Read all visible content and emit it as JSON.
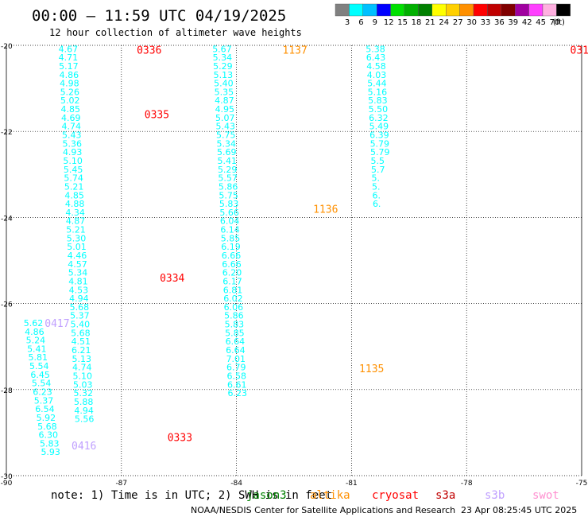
{
  "header": {
    "title": "00:00 — 11:59 UTC 04/19/2025",
    "subtitle": "12 hour collection of altimeter wave heights"
  },
  "colorbar": {
    "unit": "(ft)",
    "levels": [
      {
        "label": "3",
        "color": "#808080"
      },
      {
        "label": "6",
        "color": "#00ffff"
      },
      {
        "label": "9",
        "color": "#00c0ff"
      },
      {
        "label": "12",
        "color": "#0000ff"
      },
      {
        "label": "15",
        "color": "#00e000"
      },
      {
        "label": "18",
        "color": "#00b000"
      },
      {
        "label": "21",
        "color": "#008000"
      },
      {
        "label": "24",
        "color": "#ffff00"
      },
      {
        "label": "27",
        "color": "#ffd000"
      },
      {
        "label": "30",
        "color": "#ff9000"
      },
      {
        "label": "33",
        "color": "#ff0000"
      },
      {
        "label": "36",
        "color": "#c00000"
      },
      {
        "label": "39",
        "color": "#800000"
      },
      {
        "label": "42",
        "color": "#a000a0"
      },
      {
        "label": "45",
        "color": "#ff40ff"
      },
      {
        "label": "70",
        "color": "#ffb0e0"
      },
      {
        "label": "",
        "color": "#000000"
      }
    ]
  },
  "footer": {
    "note": "note:  1) Time is in UTC; 2) SWH is in feet",
    "credit": "NOAA/NESDIS Center for Satellite Applications and Research",
    "timestamp": "23 Apr 08:25:45 UTC 2025",
    "satellites": [
      {
        "name": "jason3",
        "color": "#008000"
      },
      {
        "name": "altika",
        "color": "#ff9000"
      },
      {
        "name": "cryosat",
        "color": "#ff0000"
      },
      {
        "name": "s3a",
        "color": "#c00000"
      },
      {
        "name": "s3b",
        "color": "#c0a0ff"
      },
      {
        "name": "swot",
        "color": "#ff90d0"
      }
    ]
  },
  "chart_data": {
    "type": "scatter",
    "xlabel": "",
    "ylabel": "",
    "xlim": [
      -90,
      -75
    ],
    "ylim": [
      -30,
      -20
    ],
    "xticks": [
      -90,
      -87,
      -84,
      -81,
      -78,
      -75
    ],
    "yticks": [
      -30,
      -28,
      -26,
      -24,
      -22,
      -20
    ],
    "grid": true,
    "series": [
      {
        "color": "#00ffff",
        "points": [
          [
            -88.64,
            -20.08,
            "4.67"
          ],
          [
            -88.64,
            -20.28,
            "4.71"
          ],
          [
            -88.63,
            -20.48,
            "5.17"
          ],
          [
            -88.62,
            -20.68,
            "4.86"
          ],
          [
            -88.61,
            -20.88,
            "4.98"
          ],
          [
            -88.6,
            -21.08,
            "5.26"
          ],
          [
            -88.59,
            -21.28,
            "5.02"
          ],
          [
            -88.58,
            -21.48,
            "4.85"
          ],
          [
            -88.57,
            -21.68,
            "4.69"
          ],
          [
            -88.56,
            -21.88,
            "4.74"
          ],
          [
            -88.55,
            -22.08,
            "5.43"
          ],
          [
            -88.54,
            -22.28,
            "5.36"
          ],
          [
            -88.53,
            -22.48,
            "4.93"
          ],
          [
            -88.52,
            -22.68,
            "5.10"
          ],
          [
            -88.51,
            -22.88,
            "5.45"
          ],
          [
            -88.5,
            -23.08,
            "5.74"
          ],
          [
            -88.49,
            -23.28,
            "5.21"
          ],
          [
            -88.48,
            -23.48,
            "4.85"
          ],
          [
            -88.47,
            -23.68,
            "4.88"
          ],
          [
            -88.46,
            -23.88,
            "4.34"
          ],
          [
            -88.45,
            -24.08,
            "4.87"
          ],
          [
            -88.44,
            -24.28,
            "5.21"
          ],
          [
            -88.43,
            -24.48,
            "5.30"
          ],
          [
            -88.42,
            -24.68,
            "5.01"
          ],
          [
            -88.41,
            -24.88,
            "4.46"
          ],
          [
            -88.4,
            -25.08,
            "4.57"
          ],
          [
            -88.39,
            -25.28,
            "5.34"
          ],
          [
            -88.38,
            -25.48,
            "4.81"
          ],
          [
            -88.37,
            -25.68,
            "4.53"
          ],
          [
            -88.36,
            -25.88,
            "4.94"
          ],
          [
            -88.35,
            -26.08,
            "5.68"
          ],
          [
            -88.34,
            -26.28,
            "5.37"
          ],
          [
            -88.33,
            -26.48,
            "5.40"
          ],
          [
            -88.32,
            -26.68,
            "5.68"
          ],
          [
            -88.31,
            -26.88,
            "4.51"
          ],
          [
            -88.3,
            -27.08,
            "6.21"
          ],
          [
            -88.29,
            -27.28,
            "5.13"
          ],
          [
            -88.28,
            -27.48,
            "4.74"
          ],
          [
            -88.27,
            -27.68,
            "5.10"
          ],
          [
            -88.26,
            -27.88,
            "5.03"
          ],
          [
            -88.25,
            -28.08,
            "5.32"
          ],
          [
            -88.24,
            -28.28,
            "5.88"
          ],
          [
            -88.23,
            -28.48,
            "4.94"
          ],
          [
            -88.22,
            -28.68,
            "5.56"
          ]
        ]
      },
      {
        "color": "#00ffff",
        "points": [
          [
            -84.63,
            -20.08,
            "5.67"
          ],
          [
            -84.62,
            -20.28,
            "5.34"
          ],
          [
            -84.61,
            -20.48,
            "5.29"
          ],
          [
            -84.6,
            -20.68,
            "5.13"
          ],
          [
            -84.59,
            -20.88,
            "5.40"
          ],
          [
            -84.58,
            -21.08,
            "5.35"
          ],
          [
            -84.57,
            -21.28,
            "4.87"
          ],
          [
            -84.56,
            -21.48,
            "4.95"
          ],
          [
            -84.55,
            -21.68,
            "5.07"
          ],
          [
            -84.54,
            -21.88,
            "5.43"
          ],
          [
            -84.53,
            -22.08,
            "5.75"
          ],
          [
            -84.52,
            -22.28,
            "5.34"
          ],
          [
            -84.51,
            -22.48,
            "5.69"
          ],
          [
            -84.5,
            -22.68,
            "5.41"
          ],
          [
            -84.49,
            -22.88,
            "5.29"
          ],
          [
            -84.48,
            -23.08,
            "5.57"
          ],
          [
            -84.47,
            -23.28,
            "5.86"
          ],
          [
            -84.46,
            -23.48,
            "5.75"
          ],
          [
            -84.45,
            -23.68,
            "5.83"
          ],
          [
            -84.44,
            -23.88,
            "5.66"
          ],
          [
            -84.43,
            -24.08,
            "6.04"
          ],
          [
            -84.42,
            -24.28,
            "6.14"
          ],
          [
            -84.41,
            -24.48,
            "5.85"
          ],
          [
            -84.4,
            -24.68,
            "6.19"
          ],
          [
            -84.39,
            -24.88,
            "6.66"
          ],
          [
            -84.38,
            -25.08,
            "6.66"
          ],
          [
            -84.37,
            -25.28,
            "6.20"
          ],
          [
            -84.36,
            -25.48,
            "6.17"
          ],
          [
            -84.35,
            -25.68,
            "6.81"
          ],
          [
            -84.34,
            -25.88,
            "6.02"
          ],
          [
            -84.33,
            -26.08,
            "6.06"
          ],
          [
            -84.32,
            -26.28,
            "5.86"
          ],
          [
            -84.31,
            -26.48,
            "5.83"
          ],
          [
            -84.3,
            -26.68,
            "5.85"
          ],
          [
            -84.29,
            -26.88,
            "6.64"
          ],
          [
            -84.28,
            -27.08,
            "6.64"
          ],
          [
            -84.27,
            -27.28,
            "7.01"
          ],
          [
            -84.26,
            -27.48,
            "6.79"
          ],
          [
            -84.25,
            -27.68,
            "6.58"
          ],
          [
            -84.24,
            -27.88,
            "6.61"
          ],
          [
            -84.23,
            -28.08,
            "6.23"
          ]
        ]
      },
      {
        "color": "#00ffff",
        "points": [
          [
            -80.63,
            -20.08,
            "5.38"
          ],
          [
            -80.62,
            -20.28,
            "6.43"
          ],
          [
            -80.61,
            -20.48,
            "4.58"
          ],
          [
            -80.6,
            -20.68,
            "4.03"
          ],
          [
            -80.59,
            -20.88,
            "5.44"
          ],
          [
            -80.58,
            -21.08,
            "5.16"
          ],
          [
            -80.57,
            -21.28,
            "5.83"
          ],
          [
            -80.56,
            -21.48,
            "5.50"
          ],
          [
            -80.55,
            -21.68,
            "6.32"
          ],
          [
            -80.54,
            -21.88,
            "5.49"
          ],
          [
            -80.53,
            -22.08,
            "6.39"
          ],
          [
            -80.52,
            -22.28,
            "5.79"
          ],
          [
            -80.51,
            -22.48,
            "5.79"
          ],
          [
            -80.5,
            -22.68,
            "5.5"
          ],
          [
            -80.49,
            -22.88,
            "5.7"
          ],
          [
            -80.48,
            -23.08,
            "5."
          ],
          [
            -80.47,
            -23.28,
            "5."
          ],
          [
            -80.46,
            -23.48,
            "6."
          ],
          [
            -80.45,
            -23.68,
            "6."
          ]
        ]
      },
      {
        "color": "#00ffff",
        "points": [
          [
            -89.55,
            -26.45,
            "5.62"
          ],
          [
            -89.52,
            -26.65,
            "4.86"
          ],
          [
            -89.49,
            -26.85,
            "5.24"
          ],
          [
            -89.46,
            -27.05,
            "5.41"
          ],
          [
            -89.43,
            -27.25,
            "5.81"
          ],
          [
            -89.4,
            -27.45,
            "5.54"
          ],
          [
            -89.37,
            -27.65,
            "6.45"
          ],
          [
            -89.34,
            -27.85,
            "5.54"
          ],
          [
            -89.31,
            -28.05,
            "6.23"
          ],
          [
            -89.28,
            -28.25,
            "5.37"
          ],
          [
            -89.25,
            -28.45,
            "6.54"
          ],
          [
            -89.22,
            -28.65,
            "5.92"
          ],
          [
            -89.19,
            -28.85,
            "5.68"
          ],
          [
            -89.16,
            -29.05,
            "6.30"
          ],
          [
            -89.13,
            -29.25,
            "5.83"
          ],
          [
            -89.1,
            -29.45,
            "5.93"
          ]
        ]
      }
    ],
    "annotations": [
      {
        "text": "0336",
        "x": -86.6,
        "y": -20.1,
        "color": "#ff0000"
      },
      {
        "text": "0335",
        "x": -86.4,
        "y": -21.6,
        "color": "#ff0000"
      },
      {
        "text": "0334",
        "x": -86.0,
        "y": -25.4,
        "color": "#ff0000"
      },
      {
        "text": "0333",
        "x": -85.8,
        "y": -29.1,
        "color": "#ff0000"
      },
      {
        "text": "1137",
        "x": -82.8,
        "y": -20.1,
        "color": "#ff9000"
      },
      {
        "text": "1136",
        "x": -82.0,
        "y": -23.8,
        "color": "#ff9000"
      },
      {
        "text": "1135",
        "x": -80.8,
        "y": -27.5,
        "color": "#ff9000"
      },
      {
        "text": "031",
        "x": -75.3,
        "y": -20.1,
        "color": "#ff0000"
      },
      {
        "text": "0417",
        "x": -89.0,
        "y": -26.45,
        "color": "#c0a0ff"
      },
      {
        "text": "0416",
        "x": -88.3,
        "y": -29.3,
        "color": "#c0a0ff"
      }
    ]
  }
}
